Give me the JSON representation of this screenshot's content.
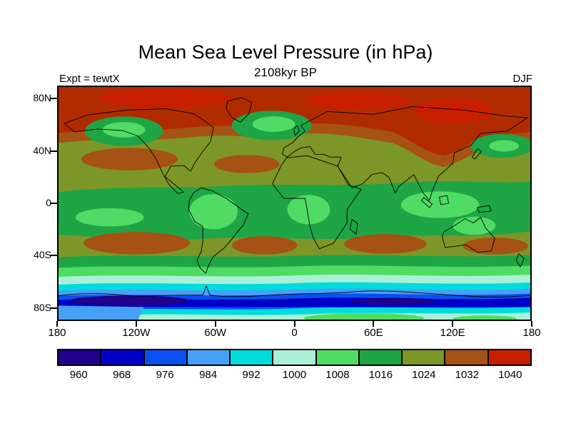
{
  "chart_data": {
    "type": "heatmap",
    "title": "Mean Sea Level Pressure (in hPa)",
    "subtitle": "2108kyr BP",
    "left_annotation": "Expt = tewtX",
    "right_annotation": "DJF",
    "map": {
      "projection": "equirectangular",
      "lon_range": [
        -180,
        180
      ],
      "lat_range": [
        -90,
        90
      ]
    },
    "x_ticks": [
      {
        "label": "180",
        "lon": -180
      },
      {
        "label": "120W",
        "lon": -120
      },
      {
        "label": "60W",
        "lon": -60
      },
      {
        "label": "0",
        "lon": 0
      },
      {
        "label": "60E",
        "lon": 60
      },
      {
        "label": "120E",
        "lon": 120
      },
      {
        "label": "180",
        "lon": 180
      }
    ],
    "y_ticks": [
      {
        "label": "80N",
        "lat": 80
      },
      {
        "label": "40N",
        "lat": 40
      },
      {
        "label": "0",
        "lat": 0
      },
      {
        "label": "40S",
        "lat": -40
      },
      {
        "label": "80S",
        "lat": -80
      }
    ],
    "colorbar": {
      "units": "hPa",
      "tick_labels": [
        "960",
        "968",
        "976",
        "984",
        "992",
        "1000",
        "1008",
        "1016",
        "1024",
        "1032",
        "1040"
      ],
      "cell_colors": [
        "#20008c",
        "#0000c8",
        "#0a50f0",
        "#46a0f5",
        "#00dcdc",
        "#aaf0d7",
        "#50dc64",
        "#1ea546",
        "#7d9628",
        "#a55214",
        "#c81e00"
      ]
    },
    "field_summary": {
      "description": "DJF mean sea level pressure, filled contours every 8 hPa over a world map",
      "features": [
        "Arctic and high northern latitudes above ~1036 hPa (dark red band), extending south over Siberia (Siberian High)",
        "Aleutian / Gulf-of-Alaska and Icelandic-Norwegian winter lows ~1000-1008 hPa (green patches in N Pacific and N Atlantic)",
        "Subtropical highs ~1028-1034 hPa (brown cells) near 30 degrees in both hemispheres",
        "Equatorial belt ~1004-1012 hPa, lowest over South America, Africa, Maritime Continent and northern Australia",
        "Circumpolar trough near 60-65S below ~968 hPa (dark blue band, darkest cores in Pacific sector)",
        "Antarctic coastal and interior values recover to ~992-1008 hPa (cyan / pale cyan / green)"
      ],
      "zonal_mean_estimate_hPa": {
        "90N": 1038,
        "60N": 1032,
        "40N": 1020,
        "20N": 1012,
        "0": 1006,
        "20S": 1014,
        "30S": 1024,
        "45S": 1012,
        "55S": 996,
        "65S": 972,
        "75S": 988,
        "90S": 1000
      }
    }
  }
}
